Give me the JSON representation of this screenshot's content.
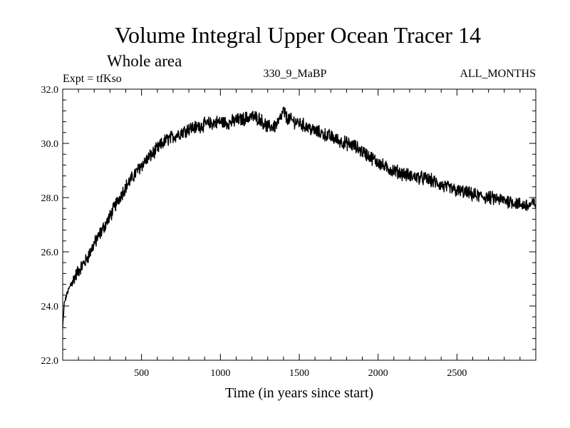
{
  "chart_data": {
    "type": "line",
    "title": "Volume Integral Upper Ocean Tracer 14",
    "subtitle": "Whole area",
    "expt_label": "Expt = tfKso",
    "run_label": "330_9_MaBP",
    "period_label": "ALL_MONTHS",
    "xlabel": "Time (in years since start)",
    "ylabel": "",
    "xlim": [
      0,
      3000
    ],
    "ylim": [
      22.0,
      32.0
    ],
    "xticks": [
      500,
      1000,
      1500,
      2000,
      2500
    ],
    "xtick_labels": [
      "500",
      "1000",
      "1500",
      "2000",
      "2500"
    ],
    "yticks": [
      22,
      24,
      26,
      28,
      30,
      32
    ],
    "ytick_labels": [
      "22.0",
      "24.0",
      "26.0",
      "28.0",
      "30.0",
      "32.0"
    ],
    "series": [
      {
        "name": "Tracer 14",
        "color": "#000000",
        "x": [
          0,
          10,
          30,
          60,
          100,
          150,
          200,
          250,
          300,
          350,
          400,
          450,
          500,
          550,
          600,
          650,
          700,
          750,
          800,
          850,
          900,
          950,
          1000,
          1050,
          1100,
          1150,
          1200,
          1250,
          1300,
          1350,
          1380,
          1400,
          1420,
          1450,
          1500,
          1550,
          1600,
          1650,
          1700,
          1750,
          1800,
          1850,
          1900,
          1950,
          2000,
          2050,
          2100,
          2150,
          2200,
          2250,
          2300,
          2350,
          2400,
          2450,
          2500,
          2550,
          2600,
          2650,
          2700,
          2750,
          2800,
          2850,
          2900,
          2950,
          3000
        ],
        "y": [
          23.2,
          24.1,
          24.5,
          24.9,
          25.3,
          25.7,
          26.3,
          26.8,
          27.3,
          27.9,
          28.4,
          28.8,
          29.2,
          29.5,
          29.8,
          30.1,
          30.25,
          30.4,
          30.55,
          30.6,
          30.7,
          30.75,
          30.8,
          30.75,
          30.85,
          30.9,
          31.0,
          30.9,
          30.6,
          30.65,
          30.9,
          31.2,
          30.95,
          30.85,
          30.75,
          30.6,
          30.45,
          30.35,
          30.25,
          30.1,
          30.0,
          29.9,
          29.7,
          29.5,
          29.3,
          29.1,
          29.0,
          28.9,
          28.8,
          28.75,
          28.7,
          28.6,
          28.45,
          28.35,
          28.25,
          28.2,
          28.1,
          28.05,
          28.0,
          27.95,
          27.9,
          27.85,
          27.75,
          27.7,
          27.8
        ]
      }
    ]
  }
}
